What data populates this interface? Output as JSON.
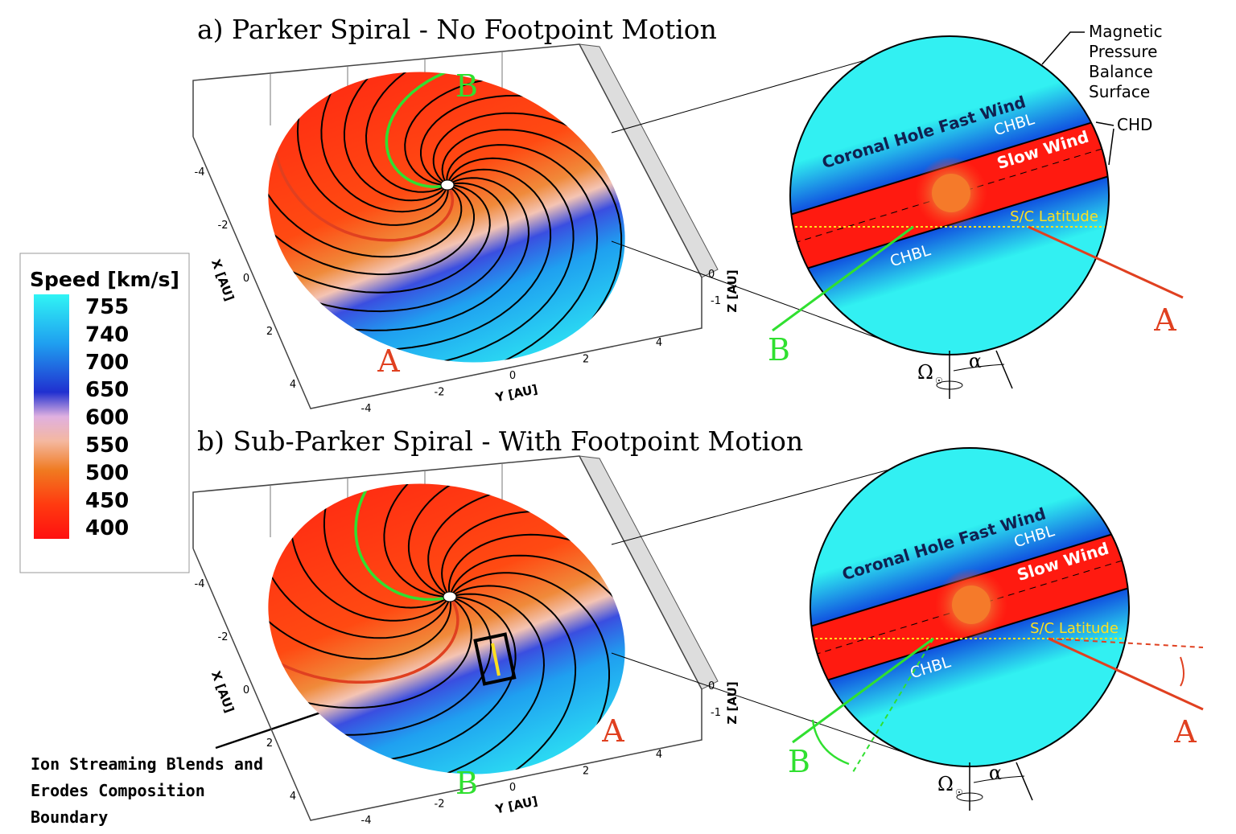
{
  "panels": [
    {
      "title": "a) Parker Spiral - No Footpoint Motion",
      "label_a": "A",
      "label_b": "B",
      "x_axis": {
        "label": "X [AU]",
        "ticks": [
          -4,
          -2,
          0,
          2,
          4
        ]
      },
      "y_axis": {
        "label": "Y [AU]",
        "ticks": [
          -4,
          -2,
          0,
          2,
          4
        ]
      },
      "z_axis": {
        "label": "Z [AU]",
        "ticks": [
          0,
          -1
        ]
      },
      "inset": {
        "fast_wind": "Coronal Hole Fast Wind",
        "chbl_upper": "CHBL",
        "slow_wind": "Slow Wind",
        "chbl_lower": "CHBL",
        "sc_latitude": "S/C Latitude",
        "label_b": "B",
        "label_a": "A",
        "omega": "Ω",
        "omega_sub": "☉",
        "alpha": "α"
      }
    },
    {
      "title": "b) Sub-Parker Spiral - With Footpoint Motion",
      "label_a": "A",
      "label_b": "B",
      "x_axis": {
        "label": "X [AU]",
        "ticks": [
          -4,
          -2,
          0,
          2,
          4
        ]
      },
      "y_axis": {
        "label": "Y [AU]",
        "ticks": [
          -4,
          -2,
          0,
          2,
          4
        ]
      },
      "z_axis": {
        "label": "Z [AU]",
        "ticks": [
          0,
          -1
        ]
      },
      "inset": {
        "fast_wind": "Coronal Hole Fast Wind",
        "chbl_upper": "CHBL",
        "slow_wind": "Slow Wind",
        "chbl_lower": "CHBL",
        "sc_latitude": "S/C Latitude",
        "label_b": "B",
        "label_a": "A",
        "omega": "Ω",
        "omega_sub": "☉",
        "alpha": "α"
      }
    }
  ],
  "colorbar": {
    "title": "Speed [km/s]",
    "levels": [
      755,
      740,
      700,
      650,
      600,
      550,
      500,
      450,
      400
    ]
  },
  "annotations": {
    "balance_surface": [
      "Magnetic",
      "Pressure",
      "Balance",
      "Surface"
    ],
    "chd": "CHD",
    "ion_streaming": [
      "Ion Streaming Blends and",
      "Erodes Composition",
      "Boundary"
    ]
  }
}
